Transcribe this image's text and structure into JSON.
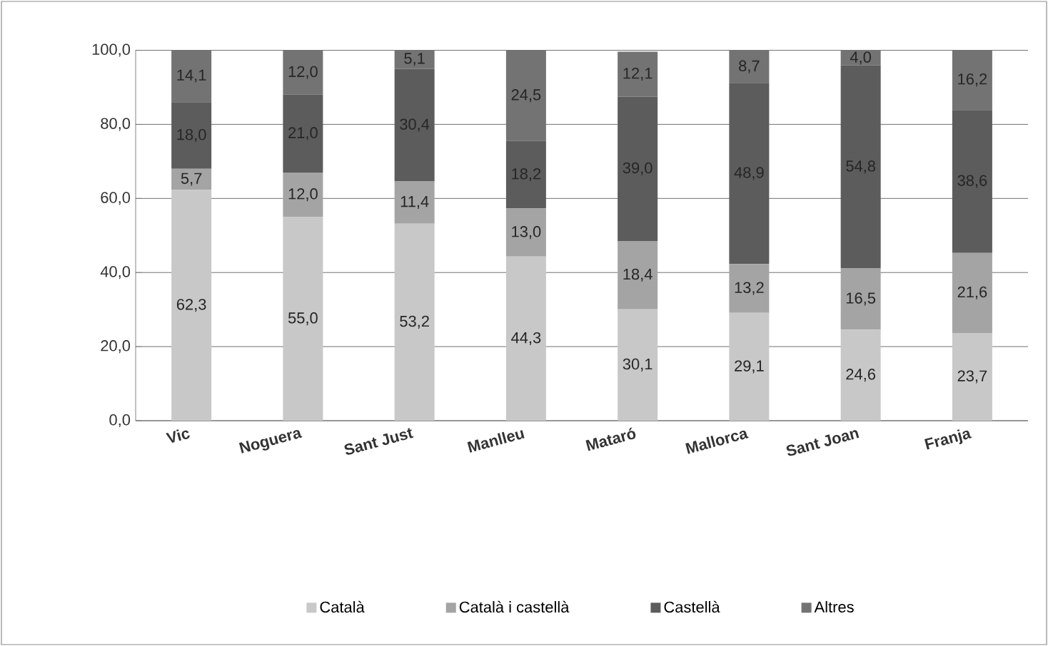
{
  "chart_data": {
    "type": "bar",
    "stacked": true,
    "categories": [
      "Vic",
      "Noguera",
      "Sant Just",
      "Manlleu",
      "Mataró",
      "Mallorca",
      "Sant Joan",
      "Franja"
    ],
    "series": [
      {
        "name": "Català",
        "color": "#c8c8c8",
        "values": [
          62.3,
          55.0,
          53.2,
          44.3,
          30.1,
          29.1,
          24.6,
          23.7
        ],
        "value_labels": [
          "62,3",
          "55,0",
          "53,2",
          "44,3",
          "30,1",
          "29,1",
          "24,6",
          "23,7"
        ]
      },
      {
        "name": "Català i castellà",
        "color": "#a4a4a4",
        "values": [
          5.7,
          12.0,
          11.4,
          13.0,
          18.4,
          13.2,
          16.5,
          21.6
        ],
        "value_labels": [
          "5,7",
          "12,0",
          "11,4",
          "13,0",
          "18,4",
          "13,2",
          "16,5",
          "21,6"
        ]
      },
      {
        "name": "Castellà",
        "color": "#5c5c5c",
        "values": [
          18.0,
          21.0,
          30.4,
          18.2,
          39.0,
          48.9,
          54.8,
          38.6
        ],
        "value_labels": [
          "18,0",
          "21,0",
          "30,4",
          "18,2",
          "39,0",
          "48,9",
          "54,8",
          "38,6"
        ]
      },
      {
        "name": "Altres",
        "color": "#737373",
        "values": [
          14.1,
          12.0,
          5.1,
          24.5,
          12.1,
          8.7,
          4.0,
          16.2
        ],
        "value_labels": [
          "14,1",
          "12,0",
          "5,1",
          "24,5",
          "12,1",
          "8,7",
          "4,0",
          "16,2"
        ]
      }
    ],
    "ylim": [
      0,
      100.1
    ],
    "yticks": [
      {
        "value": 0,
        "label": "0,0"
      },
      {
        "value": 20,
        "label": "20,0"
      },
      {
        "value": 40,
        "label": "40,0"
      },
      {
        "value": 60,
        "label": "60,0"
      },
      {
        "value": 80,
        "label": "80,0"
      },
      {
        "value": 100,
        "label": "100,0"
      }
    ],
    "grid": "y",
    "legend": "bottom"
  }
}
